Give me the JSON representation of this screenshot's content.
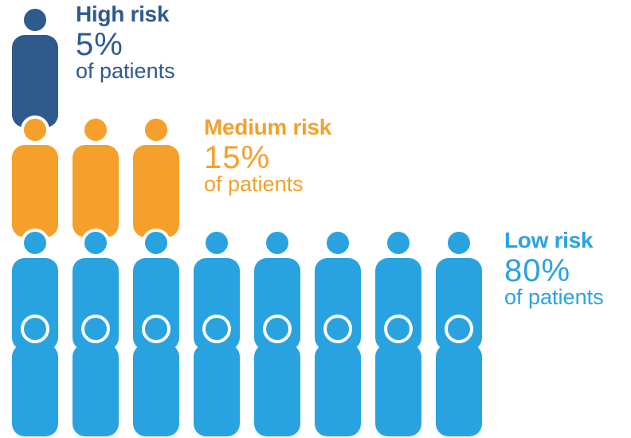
{
  "groups": [
    {
      "key": "high",
      "title": "High risk",
      "percent": "5%",
      "description": "of patients",
      "color": "#2e5a8c",
      "icon_count": 1
    },
    {
      "key": "medium",
      "title": "Medium risk",
      "percent": "15%",
      "description": "of patients",
      "color": "#f5a02a",
      "icon_count": 3
    },
    {
      "key": "low",
      "title": "Low risk",
      "percent": "80%",
      "description": "of patients",
      "color": "#29a3e0",
      "icon_count": 16
    }
  ],
  "icon": "person-icon"
}
